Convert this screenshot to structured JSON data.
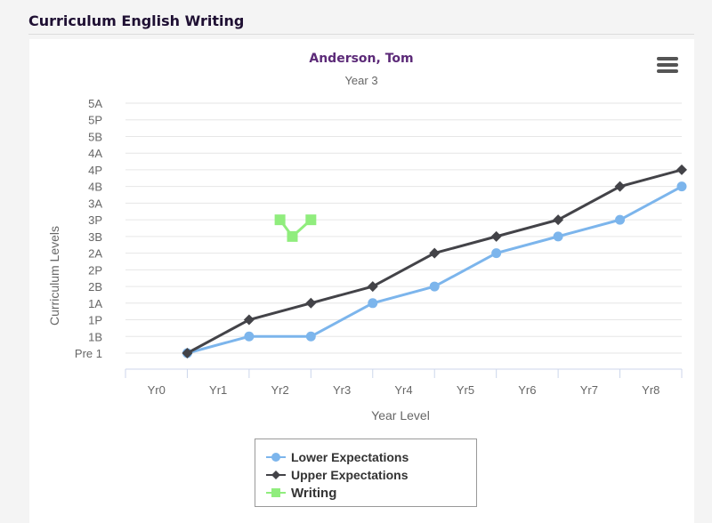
{
  "panel": {
    "title": "Curriculum English Writing"
  },
  "menu": {
    "icon": "hamburger-menu-icon"
  },
  "chart_data": {
    "type": "line",
    "title": "Anderson, Tom",
    "subtitle": "Year 3",
    "xlabel": "Year Level",
    "ylabel": "Curriculum Levels",
    "categories": [
      "Yr0",
      "Yr1",
      "Yr2",
      "Yr3",
      "Yr4",
      "Yr5",
      "Yr6",
      "Yr7",
      "Yr8"
    ],
    "y_levels": [
      "Pre 1",
      "1B",
      "1P",
      "1A",
      "2B",
      "2P",
      "2A",
      "3B",
      "3P",
      "3A",
      "4B",
      "4P",
      "4A",
      "5B",
      "5P",
      "5A"
    ],
    "series": [
      {
        "name": "Lower Expectations",
        "color": "#7cb5ec",
        "marker": "circle",
        "points": [
          [
            1,
            0
          ],
          [
            2,
            1
          ],
          [
            3,
            1
          ],
          [
            4,
            3
          ],
          [
            5,
            4
          ],
          [
            6,
            6
          ],
          [
            7,
            7
          ],
          [
            8,
            8
          ],
          [
            9,
            10
          ]
        ]
      },
      {
        "name": "Upper Expectations",
        "color": "#434348",
        "marker": "diamond",
        "points": [
          [
            1,
            0
          ],
          [
            2,
            2
          ],
          [
            3,
            3
          ],
          [
            4,
            4
          ],
          [
            5,
            6
          ],
          [
            6,
            7
          ],
          [
            7,
            8
          ],
          [
            8,
            10
          ],
          [
            9,
            11
          ]
        ]
      },
      {
        "name": "Writing",
        "color": "#90ed7d",
        "marker": "square",
        "points": [
          [
            2.5,
            8
          ],
          [
            2.7,
            7
          ],
          [
            3.0,
            8
          ]
        ]
      }
    ],
    "legend": "bottom-center",
    "grid": true
  }
}
